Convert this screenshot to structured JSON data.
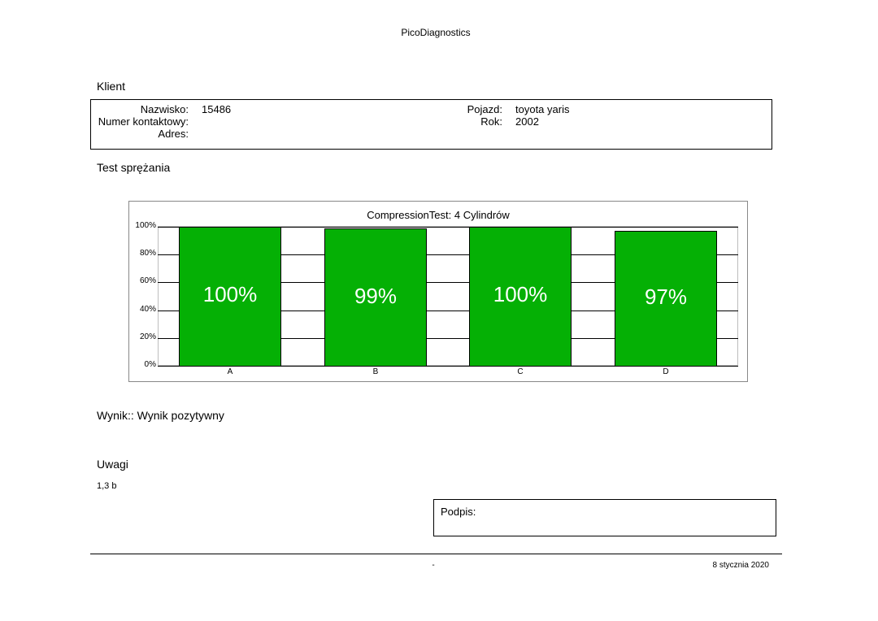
{
  "header": {
    "app_name": "PicoDiagnostics"
  },
  "client_section": {
    "title": "Klient",
    "nazwisko_label": "Nazwisko:",
    "nazwisko_value": "15486",
    "kontakt_label": "Numer kontaktowy:",
    "kontakt_value": "",
    "adres_label": "Adres:",
    "adres_value": "",
    "pojazd_label": "Pojazd:",
    "pojazd_value": "toyota yaris",
    "rok_label": "Rok:",
    "rok_value": "2002"
  },
  "test_section": {
    "title": "Test sprężania"
  },
  "chart_data": {
    "type": "bar",
    "title": "CompressionTest: 4 Cylindrów",
    "categories": [
      "A",
      "B",
      "C",
      "D"
    ],
    "values": [
      100,
      99,
      100,
      97
    ],
    "value_labels": [
      "100%",
      "99%",
      "100%",
      "97%"
    ],
    "ylim": [
      0,
      100
    ],
    "yticks": [
      "0%",
      "20%",
      "40%",
      "60%",
      "80%",
      "100%"
    ],
    "xlabel": "",
    "ylabel": "",
    "grid": true,
    "bar_color": "#05b005"
  },
  "result": {
    "text": "Wynik:: Wynik pozytywny"
  },
  "notes": {
    "title": "Uwagi",
    "text": "1,3 b"
  },
  "signature": {
    "label": "Podpis:"
  },
  "footer": {
    "center": "-",
    "date": "8 stycznia 2020"
  }
}
